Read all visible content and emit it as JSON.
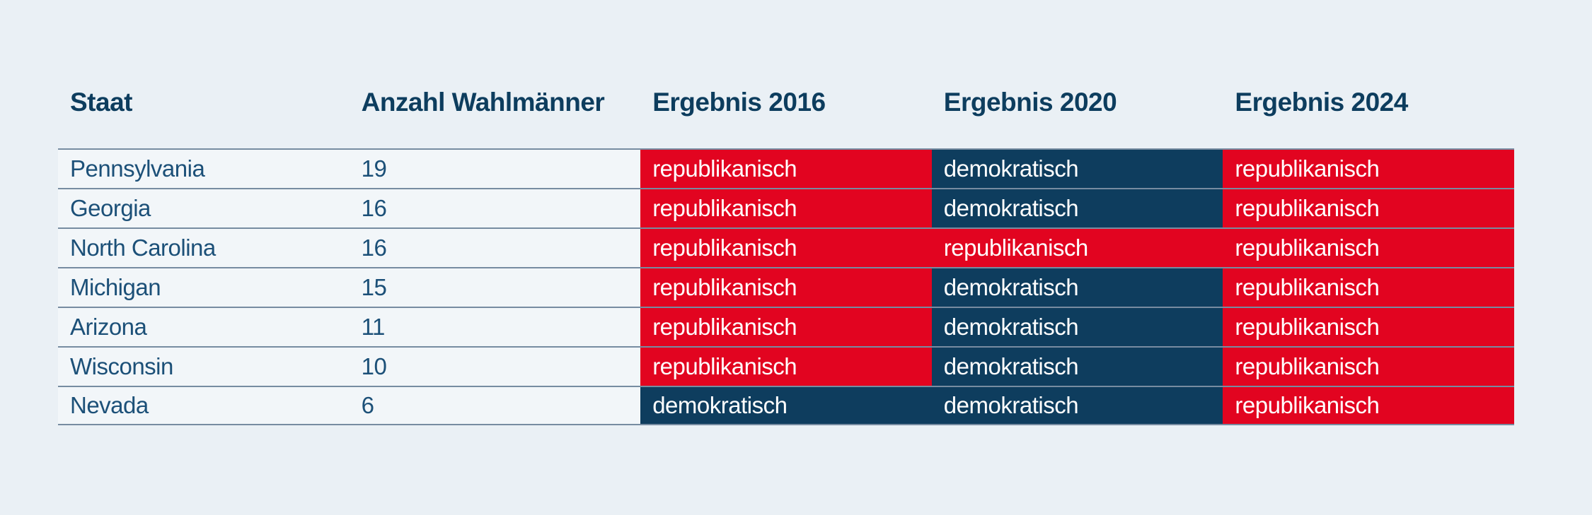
{
  "chart_data": {
    "type": "table",
    "columns": [
      {
        "key": "staat",
        "label": "Staat"
      },
      {
        "key": "wahlmaenner",
        "label": "Anzahl Wahlmänner"
      },
      {
        "key": "e2016",
        "label": "Ergebnis 2016"
      },
      {
        "key": "e2020",
        "label": "Ergebnis 2020"
      },
      {
        "key": "e2024",
        "label": "Ergebnis 2024"
      }
    ],
    "rows": [
      {
        "staat": "Pennsylvania",
        "wahlmaenner": "19",
        "e2016": "republikanisch",
        "e2020": "demokratisch",
        "e2024": "republikanisch"
      },
      {
        "staat": "Georgia",
        "wahlmaenner": "16",
        "e2016": "republikanisch",
        "e2020": "demokratisch",
        "e2024": "republikanisch"
      },
      {
        "staat": "North Carolina",
        "wahlmaenner": "16",
        "e2016": "republikanisch",
        "e2020": "republikanisch",
        "e2024": "republikanisch"
      },
      {
        "staat": "Michigan",
        "wahlmaenner": "15",
        "e2016": "republikanisch",
        "e2020": "demokratisch",
        "e2024": "republikanisch"
      },
      {
        "staat": "Arizona",
        "wahlmaenner": "11",
        "e2016": "republikanisch",
        "e2020": "demokratisch",
        "e2024": "republikanisch"
      },
      {
        "staat": "Wisconsin",
        "wahlmaenner": "10",
        "e2016": "republikanisch",
        "e2020": "demokratisch",
        "e2024": "republikanisch"
      },
      {
        "staat": "Nevada",
        "wahlmaenner": "6",
        "e2016": "demokratisch",
        "e2020": "demokratisch",
        "e2024": "republikanisch"
      }
    ]
  },
  "party_colors": {
    "republikanisch": "#e20420",
    "demokratisch": "#0e3d5e"
  },
  "colors": {
    "page_background": "#eaf0f5",
    "row_background": "#f2f6f9",
    "header_text": "#0d3d5e",
    "body_text": "#1c5078",
    "separator_line": "#5a738c",
    "result_text": "#ffffff"
  }
}
